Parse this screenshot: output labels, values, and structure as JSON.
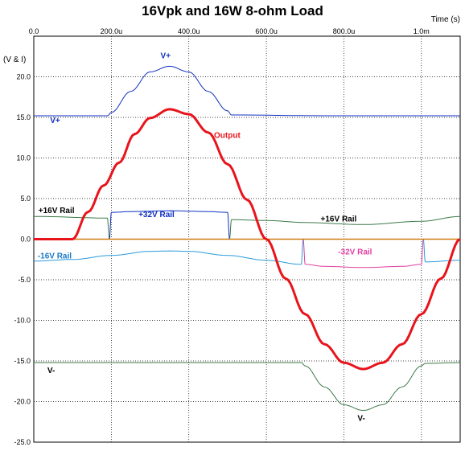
{
  "chart_data": {
    "type": "line",
    "title": "16Vpk and 16W 8-ohm Load",
    "xlabel": "Time  (s)",
    "ylabel": "(V & I)",
    "xlim": [
      0,
      0.0011
    ],
    "ylim": [
      -25,
      25
    ],
    "x_ticks": [
      {
        "v": 0,
        "label": "0.0"
      },
      {
        "v": 0.0002,
        "label": "200.0u"
      },
      {
        "v": 0.0004,
        "label": "400.0u"
      },
      {
        "v": 0.0006,
        "label": "600.0u"
      },
      {
        "v": 0.0008,
        "label": "800.0u"
      },
      {
        "v": 0.001,
        "label": "1.0m"
      }
    ],
    "y_ticks": [
      {
        "v": 20,
        "label": "20.0"
      },
      {
        "v": 15,
        "label": "15.0"
      },
      {
        "v": 10,
        "label": "10.0"
      },
      {
        "v": 5,
        "label": "5.0"
      },
      {
        "v": 0,
        "label": "0.0"
      },
      {
        "v": -5,
        "label": "-5.0"
      },
      {
        "v": -10,
        "label": "-10.0"
      },
      {
        "v": -15,
        "label": "-15.0"
      },
      {
        "v": -20,
        "label": "-20.0"
      },
      {
        "v": -25,
        "label": "-25.0"
      }
    ],
    "grid": true,
    "series": [
      {
        "name": "Output",
        "color": "#e8141c",
        "width": 3,
        "x": [
          0,
          0.0001,
          0.00014,
          0.00018,
          0.00022,
          0.00026,
          0.0003,
          0.00035,
          0.0004,
          0.00045,
          0.0005,
          0.00055,
          0.0006,
          0.00065,
          0.0007,
          0.00075,
          0.0008,
          0.00085,
          0.0009,
          0.00095,
          0.001,
          0.00105,
          0.0011
        ],
        "y": [
          0,
          0,
          3.36,
          6.6,
          9.42,
          12.94,
          14.92,
          16,
          15.4,
          13.14,
          9.24,
          4.86,
          0,
          -4.86,
          -9.24,
          -12.94,
          -15.22,
          -16,
          -15.22,
          -12.94,
          -9.24,
          -4.86,
          0
        ]
      },
      {
        "name": "V+",
        "color": "#1030c0",
        "width": 1,
        "x": [
          0,
          0.00019,
          0.0002,
          0.00025,
          0.0003,
          0.00035,
          0.0004,
          0.00045,
          0.0005,
          0.00051,
          0.00075,
          0.0011
        ],
        "y": [
          15.2,
          15.2,
          15.6,
          18.2,
          20.6,
          21.3,
          20.6,
          18.2,
          15.8,
          15.3,
          15.2,
          15.2
        ]
      },
      {
        "name": "V-",
        "color": "#3c7a48",
        "width": 1,
        "x": [
          0,
          0.00069,
          0.0007,
          0.00075,
          0.0008,
          0.00085,
          0.0009,
          0.00095,
          0.001,
          0.00101,
          0.0011
        ],
        "y": [
          -15.2,
          -15.2,
          -15.6,
          -18.2,
          -20.4,
          -21.1,
          -20.4,
          -18.2,
          -15.6,
          -15.3,
          -15.2
        ]
      },
      {
        "name": "+16V Rail",
        "color": "#3c7a48",
        "width": 1,
        "x": [
          0,
          0.00019,
          0.000195,
          0.000505,
          0.00051,
          0.0006,
          0.0007,
          0.00085,
          0.001,
          0.0011
        ],
        "y": [
          2.8,
          2.6,
          0,
          0,
          2.4,
          2.3,
          2.05,
          1.8,
          2.2,
          2.8
        ]
      },
      {
        "name": "+32V Rail",
        "color": "#1030c0",
        "width": 1,
        "x": [
          0.000195,
          0.0002,
          0.00025,
          0.00035,
          0.00045,
          0.0005,
          0.000505
        ],
        "y": [
          0,
          3.3,
          3.4,
          3.5,
          3.4,
          3.3,
          0
        ]
      },
      {
        "name": "-16V Rail",
        "color": "#2a9ad8",
        "width": 1,
        "x": [
          0,
          0.0001,
          0.0002,
          0.0003,
          0.00035,
          0.0004,
          0.0005,
          0.0006,
          0.00069,
          0.000695,
          0.001005,
          0.00101,
          0.0011
        ],
        "y": [
          -2.7,
          -2.5,
          -2,
          -1.5,
          -1.45,
          -1.5,
          -2,
          -2.6,
          -3.1,
          0,
          0,
          -2.8,
          -2.6
        ]
      },
      {
        "name": "-32V Rail",
        "color": "#e040a0",
        "width": 1,
        "x": [
          0.000695,
          0.0007,
          0.00075,
          0.00085,
          0.00095,
          0.001,
          0.001005
        ],
        "y": [
          0,
          -3.1,
          -3.35,
          -3.5,
          -3.35,
          -3.1,
          0
        ]
      },
      {
        "name": "Zero",
        "color": "#d07a10",
        "width": 1.5,
        "x": [
          0,
          0.0011
        ],
        "y": [
          0,
          0
        ]
      }
    ],
    "annotations": [
      {
        "text": "V+",
        "color": "#1030c0",
        "x": 0.00034,
        "y": 22.3,
        "anchor": "middle"
      },
      {
        "text": "V+",
        "color": "#1030c0",
        "x": 4.2e-05,
        "y": 14.3,
        "anchor": "start"
      },
      {
        "text": "Output",
        "color": "#e8141c",
        "x": 0.000465,
        "y": 12.5,
        "anchor": "start"
      },
      {
        "text": "+16V Rail",
        "color": "#000000",
        "x": 1.2e-05,
        "y": 3.2,
        "anchor": "start"
      },
      {
        "text": "+32V Rail",
        "color": "#1030c0",
        "x": 0.00027,
        "y": 2.7,
        "anchor": "start"
      },
      {
        "text": "+16V Rail",
        "color": "#000000",
        "x": 0.00074,
        "y": 2.2,
        "anchor": "start"
      },
      {
        "text": "-16V Rail",
        "color": "#1a78c8",
        "x": 1e-05,
        "y": -2.4,
        "anchor": "start"
      },
      {
        "text": "-32V Rail",
        "color": "#e040a0",
        "x": 0.000785,
        "y": -1.9,
        "anchor": "start"
      },
      {
        "text": "V-",
        "color": "#000000",
        "x": 3.5e-05,
        "y": -16.5,
        "anchor": "start"
      },
      {
        "text": "V-",
        "color": "#000000",
        "x": 0.000845,
        "y": -22.4,
        "anchor": "middle"
      }
    ]
  }
}
